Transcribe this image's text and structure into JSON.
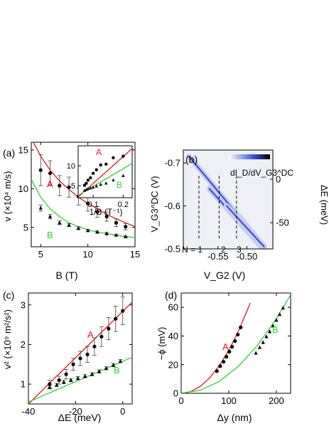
{
  "colors": {
    "red": "#e8141c",
    "green": "#2fd12f",
    "axis": "#000000",
    "blue": "#2a3fd8",
    "gray": "#7a7a7a"
  },
  "panels": {
    "a": {
      "label": "(a)",
      "xlabel": "B (T)",
      "ylabel": "v (×10⁴ m/s)",
      "labelA": "A",
      "labelB": "B",
      "inset": {
        "xlabel": "1/B (T⁻¹)",
        "labelA": "A",
        "labelB": "B"
      }
    },
    "b": {
      "label": "(b)",
      "xlabel": "V_G2 (V)",
      "ylabel": "V_G3^DC (V)",
      "ylabel_right": "ΔE (meV)",
      "colorbar_label": "dI_D/dV_G3^DC",
      "n_labels": [
        "N = 1",
        "2",
        "3"
      ]
    },
    "c": {
      "label": "(c)",
      "xlabel": "ΔE (meV)",
      "ylabel": "v² (×10⁹ m²/s²)",
      "labelA": "A",
      "labelB": "B"
    },
    "d": {
      "label": "(d)",
      "xlabel": "Δy (nm)",
      "ylabel": "−ϕ (mV)",
      "labelA": "A",
      "labelB": "B"
    }
  },
  "chart_data": [
    {
      "panel": "a",
      "type": "scatter",
      "title": "",
      "xlabel": "B (T)",
      "ylabel": "v (×10⁴ m/s)",
      "xlim": [
        4,
        15
      ],
      "ylim": [
        2.5,
        16
      ],
      "xticks": [
        5,
        10,
        15
      ],
      "yticks": [
        5,
        10,
        15
      ],
      "series": [
        {
          "name": "A",
          "marker": "circle",
          "color": "#000000",
          "x": [
            5,
            6,
            7,
            8,
            9,
            10,
            11,
            12,
            13,
            14
          ],
          "y": [
            12.4,
            12.0,
            10.4,
            10.2,
            9.0,
            8.1,
            7.0,
            6.4,
            5.6,
            5.1
          ],
          "err": [
            2.0,
            1.6,
            1.3,
            1.3,
            1.1,
            1.0,
            0.7,
            0.6,
            0.5,
            0.4
          ]
        },
        {
          "name": "B",
          "marker": "triangle",
          "color": "#000000",
          "x": [
            5,
            6,
            7,
            8,
            9,
            10,
            11,
            12,
            13,
            14
          ],
          "y": [
            7.5,
            6.4,
            5.6,
            5.3,
            4.9,
            4.6,
            4.4,
            4.2,
            4.0,
            3.8
          ],
          "err": [
            0.4,
            0.3,
            0.25,
            0.2,
            0.2,
            0.15,
            0.15,
            0.15,
            0.1,
            0.1
          ]
        }
      ],
      "fits": [
        {
          "name": "A",
          "color": "#e8141c",
          "x": [
            4,
            5,
            6,
            7,
            8,
            9,
            10,
            11,
            12,
            13,
            14,
            15
          ],
          "y": [
            16.5,
            14.2,
            12.4,
            11.0,
            9.9,
            8.9,
            8.1,
            7.4,
            6.7,
            6.1,
            5.6,
            5.1
          ]
        },
        {
          "name": "B",
          "color": "#2fd12f",
          "x": [
            4,
            5,
            6,
            7,
            8,
            9,
            10,
            11,
            12,
            13,
            14,
            15
          ],
          "y": [
            11.2,
            8.9,
            7.4,
            6.4,
            5.6,
            5.1,
            4.7,
            4.4,
            4.2,
            4.0,
            3.8,
            3.7
          ]
        }
      ]
    },
    {
      "panel": "a-inset",
      "type": "scatter",
      "title": "",
      "xlabel": "1/B (T⁻¹)",
      "ylabel": "",
      "xlim": [
        0.05,
        0.23
      ],
      "ylim": [
        2,
        15
      ],
      "xticks": [
        0.1,
        0.2
      ],
      "yticks": [
        5,
        10
      ],
      "series": [
        {
          "name": "A",
          "marker": "circle",
          "x": [
            0.071,
            0.077,
            0.083,
            0.091,
            0.1,
            0.111,
            0.125,
            0.143,
            0.167,
            0.2
          ],
          "y": [
            5.1,
            5.6,
            6.4,
            7.0,
            8.1,
            9.0,
            10.2,
            10.4,
            12.0,
            12.4
          ]
        },
        {
          "name": "B",
          "marker": "triangle",
          "x": [
            0.071,
            0.077,
            0.083,
            0.091,
            0.1,
            0.111,
            0.125,
            0.143,
            0.167,
            0.2
          ],
          "y": [
            3.8,
            4.0,
            4.2,
            4.4,
            4.6,
            4.9,
            5.3,
            5.6,
            6.4,
            7.5
          ]
        }
      ],
      "fits": [
        {
          "name": "A",
          "color": "#e8141c",
          "x": [
            0.05,
            0.23
          ],
          "y": [
            2.2,
            14.3
          ]
        },
        {
          "name": "B",
          "color": "#2fd12f",
          "x": [
            0.05,
            0.23
          ],
          "y": [
            2.6,
            10.6
          ]
        }
      ]
    },
    {
      "panel": "b",
      "type": "heatmap",
      "title": "",
      "xlabel": "V_G2 (V)",
      "ylabel": "V_G3^DC (V)",
      "xlim": [
        -0.61,
        -0.455
      ],
      "ylim": [
        -0.5,
        -0.73
      ],
      "xticks": [
        -0.55,
        -0.5
      ],
      "yticks": [
        -0.7,
        -0.6,
        -0.5
      ],
      "right_axis": {
        "label": "ΔE (meV)",
        "ticks": [
          0,
          -50
        ]
      },
      "lines": [
        {
          "N": 1,
          "x": [
            -0.6,
            -0.47
          ],
          "y": [
            -0.715,
            -0.505
          ]
        },
        {
          "N": 2,
          "x": [
            -0.565,
            -0.475
          ],
          "y": [
            -0.64,
            -0.505
          ]
        },
        {
          "N": 3,
          "x": [
            -0.535,
            -0.47
          ],
          "y": [
            -0.6,
            -0.505
          ]
        }
      ],
      "dashed_x": [
        -0.583,
        -0.548,
        -0.518
      ]
    },
    {
      "panel": "c",
      "type": "scatter",
      "title": "",
      "xlabel": "ΔE (meV)",
      "ylabel": "v² (×10⁹ m²/s²)",
      "xlim": [
        -40,
        4
      ],
      "ylim": [
        0.5,
        3.3
      ],
      "xticks": [
        -40,
        -20,
        0
      ],
      "yticks": [
        1,
        2,
        3
      ],
      "series": [
        {
          "name": "A",
          "marker": "circle",
          "x": [
            -31,
            -27,
            -24,
            -21,
            -18,
            -15,
            -12,
            -9,
            -6,
            -3,
            0
          ],
          "y": [
            1.0,
            1.1,
            1.25,
            1.5,
            1.65,
            1.75,
            1.95,
            2.2,
            2.4,
            2.65,
            2.85
          ],
          "err": [
            0.1,
            0.1,
            0.12,
            0.15,
            0.18,
            0.2,
            0.22,
            0.25,
            0.28,
            0.32,
            0.35
          ]
        },
        {
          "name": "B",
          "marker": "triangle",
          "x": [
            -31,
            -28,
            -25,
            -22,
            -19,
            -16,
            -13,
            -10,
            -7,
            -4,
            -1
          ],
          "y": [
            0.92,
            0.98,
            1.05,
            1.1,
            1.15,
            1.2,
            1.25,
            1.32,
            1.4,
            1.48,
            1.58
          ],
          "err": [
            0.04,
            0.04,
            0.04,
            0.04,
            0.04,
            0.04,
            0.04,
            0.04,
            0.04,
            0.04,
            0.04
          ]
        }
      ],
      "fits": [
        {
          "name": "A",
          "color": "#e8141c",
          "x": [
            -40,
            4
          ],
          "y": [
            0.5,
            3.07
          ]
        },
        {
          "name": "B",
          "color": "#2fd12f",
          "x": [
            -40,
            4
          ],
          "y": [
            0.55,
            1.68
          ]
        }
      ]
    },
    {
      "panel": "d",
      "type": "scatter",
      "title": "",
      "xlabel": "Δy (nm)",
      "ylabel": "−ϕ (mV)",
      "xlim": [
        0,
        230
      ],
      "ylim": [
        0,
        70
      ],
      "xticks": [
        0,
        100,
        200
      ],
      "yticks": [
        0,
        20,
        40,
        60
      ],
      "series": [
        {
          "name": "A",
          "marker": "circle",
          "x": [
            75,
            82,
            89,
            95,
            101,
            107,
            113,
            119,
            125
          ],
          "y": [
            15.5,
            19,
            22,
            25.5,
            29,
            32.5,
            36.5,
            41,
            46
          ]
        },
        {
          "name": "B",
          "marker": "triangle",
          "x": [
            157,
            165,
            172,
            179,
            186,
            193,
            200,
            207,
            214
          ],
          "y": [
            28,
            32,
            35.5,
            39.5,
            43,
            47,
            51,
            55,
            59.5
          ]
        }
      ],
      "fits": [
        {
          "name": "A",
          "color": "#e8141c",
          "x": [
            0,
            20,
            40,
            60,
            80,
            100,
            120,
            140,
            145
          ],
          "y": [
            0,
            1.2,
            4.8,
            10.8,
            19.2,
            30,
            43.2,
            58.8,
            63.1
          ]
        },
        {
          "name": "B",
          "color": "#2fd12f",
          "x": [
            0,
            40,
            80,
            120,
            160,
            200,
            230
          ],
          "y": [
            0,
            2.1,
            8.3,
            18.7,
            33.3,
            52,
            68.8
          ]
        }
      ]
    }
  ]
}
